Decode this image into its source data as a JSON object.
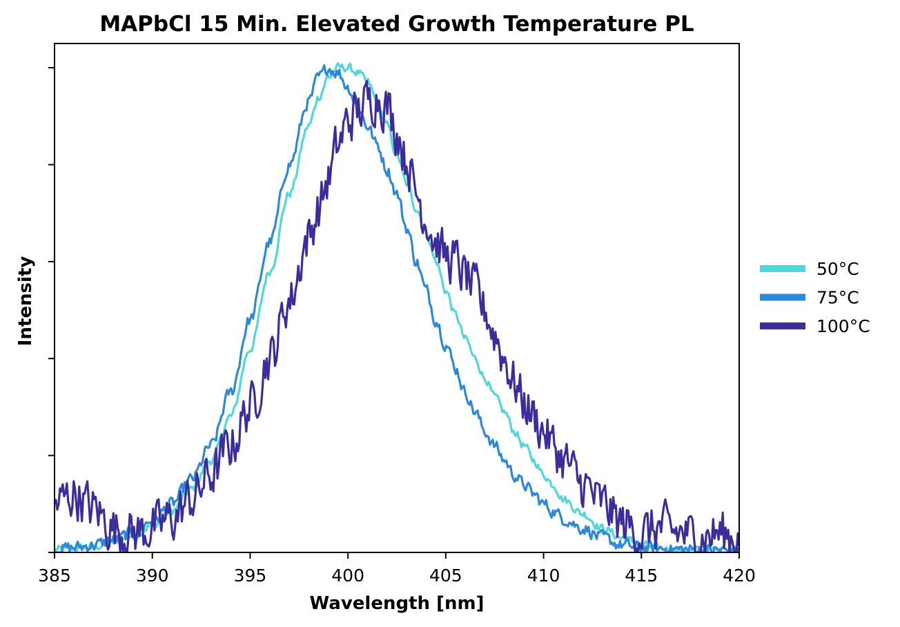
{
  "chart_data": {
    "type": "line",
    "title": "MAPbCl 15 Min. Elevated Growth Temperature PL",
    "xlabel": "Wavelength [nm]",
    "ylabel": "Intensity",
    "xlim": [
      385,
      420
    ],
    "ylim": [
      0,
      1.05
    ],
    "x_ticks": [
      385,
      390,
      395,
      400,
      405,
      410,
      415,
      420
    ],
    "x_tick_labels": [
      "385",
      "390",
      "395",
      "400",
      "405",
      "410",
      "415",
      "420"
    ],
    "y_tick_values": [
      0.2,
      0.4,
      0.6,
      0.8,
      1.0
    ],
    "y_tick_labels_shown": false,
    "grid": false,
    "legend_position": "center-right outside",
    "series": [
      {
        "name": "50°C",
        "color": "#4fd8d8",
        "noise": 0.008,
        "points": [
          [
            385,
            0.005
          ],
          [
            386,
            0.008
          ],
          [
            387,
            0.012
          ],
          [
            388,
            0.02
          ],
          [
            389,
            0.035
          ],
          [
            390,
            0.055
          ],
          [
            391,
            0.085
          ],
          [
            392,
            0.13
          ],
          [
            393,
            0.19
          ],
          [
            394,
            0.28
          ],
          [
            395,
            0.42
          ],
          [
            396,
            0.58
          ],
          [
            397,
            0.74
          ],
          [
            398,
            0.88
          ],
          [
            398.5,
            0.94
          ],
          [
            399,
            0.98
          ],
          [
            399.5,
            1.0
          ],
          [
            400,
            1.0
          ],
          [
            400.5,
            0.99
          ],
          [
            401,
            0.97
          ],
          [
            401.5,
            0.93
          ],
          [
            402,
            0.88
          ],
          [
            402.5,
            0.82
          ],
          [
            403,
            0.76
          ],
          [
            403.5,
            0.71
          ],
          [
            404,
            0.66
          ],
          [
            404.5,
            0.6
          ],
          [
            405,
            0.54
          ],
          [
            405.5,
            0.49
          ],
          [
            406,
            0.44
          ],
          [
            406.5,
            0.4
          ],
          [
            407,
            0.36
          ],
          [
            407.5,
            0.32
          ],
          [
            408,
            0.29
          ],
          [
            408.5,
            0.25
          ],
          [
            409,
            0.22
          ],
          [
            409.5,
            0.19
          ],
          [
            410,
            0.16
          ],
          [
            410.5,
            0.14
          ],
          [
            411,
            0.11
          ],
          [
            412,
            0.08
          ],
          [
            413,
            0.05
          ],
          [
            414,
            0.03
          ],
          [
            415,
            0.015
          ],
          [
            416,
            0.008
          ],
          [
            417,
            0.005
          ],
          [
            418,
            0.004
          ],
          [
            419,
            0.003
          ],
          [
            420,
            0.003
          ]
        ]
      },
      {
        "name": "75°C",
        "color": "#2b88dc",
        "noise": 0.012,
        "points": [
          [
            385,
            0.005
          ],
          [
            386,
            0.01
          ],
          [
            387,
            0.015
          ],
          [
            388,
            0.025
          ],
          [
            389,
            0.04
          ],
          [
            390,
            0.065
          ],
          [
            391,
            0.1
          ],
          [
            392,
            0.15
          ],
          [
            393,
            0.22
          ],
          [
            394,
            0.33
          ],
          [
            395,
            0.48
          ],
          [
            396,
            0.64
          ],
          [
            397,
            0.8
          ],
          [
            398,
            0.93
          ],
          [
            398.5,
            0.98
          ],
          [
            399,
            1.0
          ],
          [
            399.5,
            0.99
          ],
          [
            400,
            0.96
          ],
          [
            400.5,
            0.92
          ],
          [
            401,
            0.88
          ],
          [
            401.5,
            0.84
          ],
          [
            402,
            0.79
          ],
          [
            402.5,
            0.74
          ],
          [
            403,
            0.67
          ],
          [
            403.5,
            0.6
          ],
          [
            404,
            0.54
          ],
          [
            404.5,
            0.48
          ],
          [
            405,
            0.43
          ],
          [
            405.5,
            0.38
          ],
          [
            406,
            0.33
          ],
          [
            406.5,
            0.29
          ],
          [
            407,
            0.25
          ],
          [
            407.5,
            0.22
          ],
          [
            408,
            0.19
          ],
          [
            408.5,
            0.16
          ],
          [
            409,
            0.14
          ],
          [
            409.5,
            0.12
          ],
          [
            410,
            0.1
          ],
          [
            410.5,
            0.085
          ],
          [
            411,
            0.07
          ],
          [
            412,
            0.05
          ],
          [
            413,
            0.03
          ],
          [
            414,
            0.015
          ],
          [
            415,
            0.01
          ],
          [
            416,
            0.008
          ],
          [
            417,
            0.006
          ],
          [
            418,
            0.005
          ],
          [
            419,
            0.004
          ],
          [
            420,
            0.005
          ]
        ]
      },
      {
        "name": "100°C",
        "color": "#3b2e9c",
        "noise": 0.045,
        "points": [
          [
            385,
            0.1
          ],
          [
            386,
            0.12
          ],
          [
            387,
            0.09
          ],
          [
            388,
            0.05
          ],
          [
            389,
            0.04
          ],
          [
            390,
            0.05
          ],
          [
            391,
            0.07
          ],
          [
            392,
            0.11
          ],
          [
            393,
            0.16
          ],
          [
            394,
            0.22
          ],
          [
            395,
            0.3
          ],
          [
            396,
            0.4
          ],
          [
            397,
            0.52
          ],
          [
            398,
            0.65
          ],
          [
            398.5,
            0.71
          ],
          [
            399,
            0.77
          ],
          [
            399.5,
            0.84
          ],
          [
            400,
            0.89
          ],
          [
            400.5,
            0.91
          ],
          [
            401,
            0.93
          ],
          [
            401.5,
            0.94
          ],
          [
            402,
            0.92
          ],
          [
            402.5,
            0.87
          ],
          [
            403,
            0.81
          ],
          [
            403.5,
            0.74
          ],
          [
            404,
            0.69
          ],
          [
            404.5,
            0.64
          ],
          [
            405,
            0.61
          ],
          [
            405.5,
            0.6
          ],
          [
            406,
            0.57
          ],
          [
            406.5,
            0.54
          ],
          [
            407,
            0.5
          ],
          [
            407.5,
            0.45
          ],
          [
            408,
            0.4
          ],
          [
            408.5,
            0.35
          ],
          [
            409,
            0.31
          ],
          [
            409.5,
            0.28
          ],
          [
            410,
            0.25
          ],
          [
            410.5,
            0.22
          ],
          [
            411,
            0.19
          ],
          [
            412,
            0.14
          ],
          [
            413,
            0.1
          ],
          [
            414,
            0.06
          ],
          [
            415,
            0.04
          ],
          [
            416,
            0.05
          ],
          [
            417,
            0.04
          ],
          [
            418,
            0.03
          ],
          [
            419,
            0.04
          ],
          [
            420,
            0.03
          ]
        ]
      }
    ]
  }
}
